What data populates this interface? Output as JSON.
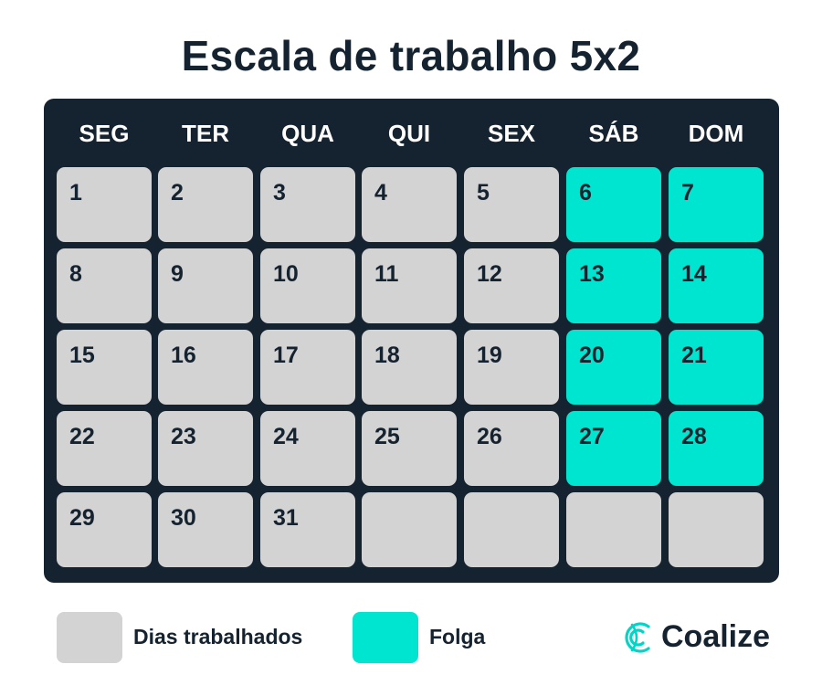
{
  "title": "Escala de trabalho 5x2",
  "weekdays": [
    "SEG",
    "TER",
    "QUA",
    "QUI",
    "SEX",
    "SÁB",
    "DOM"
  ],
  "weeks": [
    [
      {
        "day": "1",
        "status": "worked"
      },
      {
        "day": "2",
        "status": "worked"
      },
      {
        "day": "3",
        "status": "worked"
      },
      {
        "day": "4",
        "status": "worked"
      },
      {
        "day": "5",
        "status": "worked"
      },
      {
        "day": "6",
        "status": "off"
      },
      {
        "day": "7",
        "status": "off"
      }
    ],
    [
      {
        "day": "8",
        "status": "worked"
      },
      {
        "day": "9",
        "status": "worked"
      },
      {
        "day": "10",
        "status": "worked"
      },
      {
        "day": "11",
        "status": "worked"
      },
      {
        "day": "12",
        "status": "worked"
      },
      {
        "day": "13",
        "status": "off"
      },
      {
        "day": "14",
        "status": "off"
      }
    ],
    [
      {
        "day": "15",
        "status": "worked"
      },
      {
        "day": "16",
        "status": "worked"
      },
      {
        "day": "17",
        "status": "worked"
      },
      {
        "day": "18",
        "status": "worked"
      },
      {
        "day": "19",
        "status": "worked"
      },
      {
        "day": "20",
        "status": "off"
      },
      {
        "day": "21",
        "status": "off"
      }
    ],
    [
      {
        "day": "22",
        "status": "worked"
      },
      {
        "day": "23",
        "status": "worked"
      },
      {
        "day": "24",
        "status": "worked"
      },
      {
        "day": "25",
        "status": "worked"
      },
      {
        "day": "26",
        "status": "worked"
      },
      {
        "day": "27",
        "status": "off"
      },
      {
        "day": "28",
        "status": "off"
      }
    ],
    [
      {
        "day": "29",
        "status": "worked"
      },
      {
        "day": "30",
        "status": "worked"
      },
      {
        "day": "31",
        "status": "worked"
      },
      {
        "day": "",
        "status": "empty"
      },
      {
        "day": "",
        "status": "empty"
      },
      {
        "day": "",
        "status": "empty"
      },
      {
        "day": "",
        "status": "empty"
      }
    ]
  ],
  "legend": {
    "worked_label": "Dias trabalhados",
    "off_label": "Folga"
  },
  "brand": {
    "name": "Coalize",
    "icon": "coalize-logo-icon"
  },
  "colors": {
    "background": "#ffffff",
    "calendar_bg": "#15222f",
    "worked": "#d3d3d3",
    "off": "#00e5cf",
    "text": "#15222f"
  }
}
